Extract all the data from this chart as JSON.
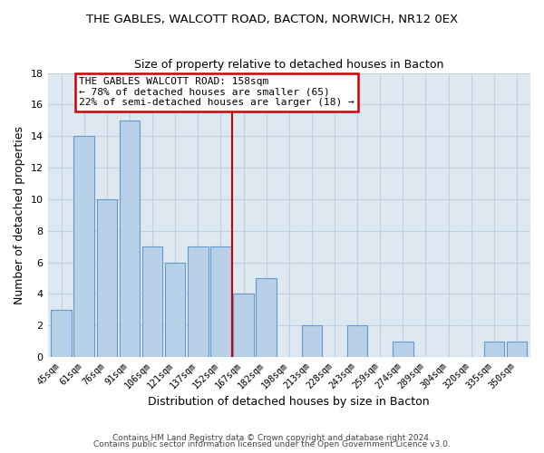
{
  "title": "THE GABLES, WALCOTT ROAD, BACTON, NORWICH, NR12 0EX",
  "subtitle": "Size of property relative to detached houses in Bacton",
  "xlabel": "Distribution of detached houses by size in Bacton",
  "ylabel": "Number of detached properties",
  "categories": [
    "45sqm",
    "61sqm",
    "76sqm",
    "91sqm",
    "106sqm",
    "121sqm",
    "137sqm",
    "152sqm",
    "167sqm",
    "182sqm",
    "198sqm",
    "213sqm",
    "228sqm",
    "243sqm",
    "259sqm",
    "274sqm",
    "289sqm",
    "304sqm",
    "320sqm",
    "335sqm",
    "350sqm"
  ],
  "values": [
    3,
    14,
    10,
    15,
    7,
    6,
    7,
    7,
    4,
    5,
    0,
    2,
    0,
    2,
    0,
    1,
    0,
    0,
    0,
    1,
    1
  ],
  "bar_color": "#b8d0e8",
  "bar_edge_color": "#6699cc",
  "highlight_line_color": "#cc0000",
  "annotation_title": "THE GABLES WALCOTT ROAD: 158sqm",
  "annotation_line1": "← 78% of detached houses are smaller (65)",
  "annotation_line2": "22% of semi-detached houses are larger (18) →",
  "annotation_box_color": "#ffffff",
  "annotation_box_edge_color": "#cc0000",
  "ylim": [
    0,
    18
  ],
  "yticks": [
    0,
    2,
    4,
    6,
    8,
    10,
    12,
    14,
    16,
    18
  ],
  "footer1": "Contains HM Land Registry data © Crown copyright and database right 2024.",
  "footer2": "Contains public sector information licensed under the Open Government Licence v3.0.",
  "background_color": "#ffffff",
  "plot_bg_color": "#dde8f0",
  "grid_color": "#c0d0e0"
}
